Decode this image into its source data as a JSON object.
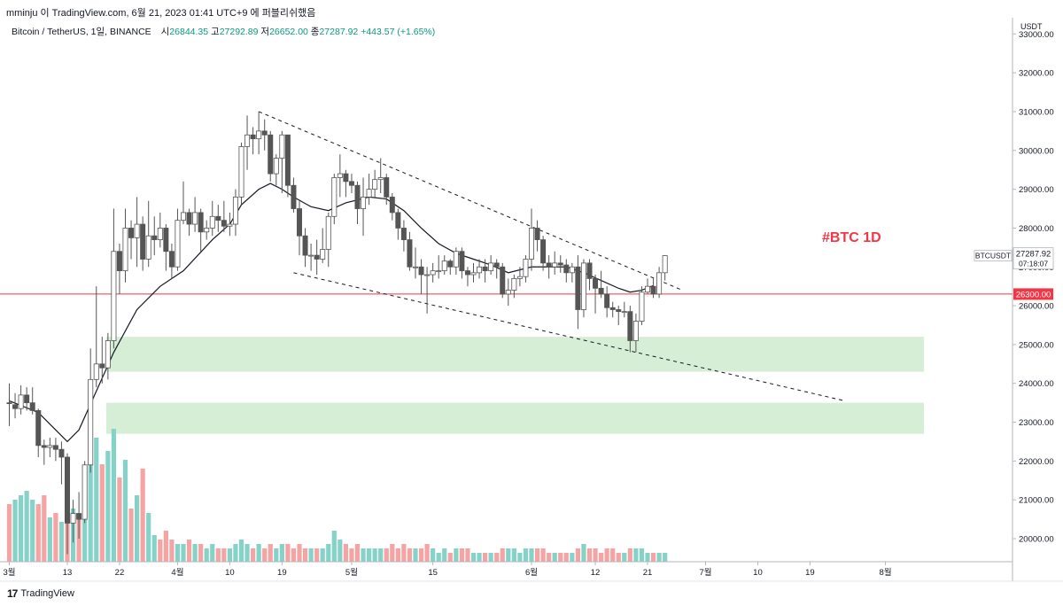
{
  "header": {
    "attribution": "mminju 이 TradingView.com, 6월 21, 2023 01:41 UTC+9 에 퍼블리쉬했음",
    "symbol": "Bitcoin / TetherUS, 1일, BINANCE",
    "ohlc": {
      "open_label": "시",
      "open": "26844.35",
      "high_label": "고",
      "high": "27292.89",
      "low_label": "저",
      "low": "26652.00",
      "close_label": "종",
      "close": "27287.92",
      "change": "+443.57 (+1.65%)"
    }
  },
  "chart_data": {
    "type": "candlestick",
    "title": "#BTC 1D",
    "currency": "USDT",
    "y_ticks": [
      20000,
      21000,
      22000,
      23000,
      24000,
      25000,
      26000,
      27000,
      28000,
      29000,
      30000,
      31000,
      32000,
      33000
    ],
    "y_tick_labels": [
      "20000.00",
      "21000.00",
      "22000.00",
      "23000.00",
      "24000.00",
      "25000.00",
      "26000.00",
      "27000.00",
      "28000.00",
      "29000.00",
      "30000.00",
      "31000.00",
      "32000.00",
      "33000.00"
    ],
    "x_ticks": [
      {
        "label": "3월",
        "d": 0
      },
      {
        "label": "13",
        "d": 10
      },
      {
        "label": "22",
        "d": 19
      },
      {
        "label": "4월",
        "d": 29
      },
      {
        "label": "10",
        "d": 38
      },
      {
        "label": "19",
        "d": 47
      },
      {
        "label": "5월",
        "d": 59
      },
      {
        "label": "15",
        "d": 73
      },
      {
        "label": "6월",
        "d": 90
      },
      {
        "label": "12",
        "d": 101
      },
      {
        "label": "21",
        "d": 110
      },
      {
        "label": "7월",
        "d": 120
      },
      {
        "label": "10",
        "d": 129
      },
      {
        "label": "19",
        "d": 138
      },
      {
        "label": "8월",
        "d": 151
      }
    ],
    "current_price": {
      "symbol": "BTCUSDT",
      "value": "27287.92",
      "countdown": "07:18:07"
    },
    "horizontal_line": {
      "value": 26300,
      "label": "26300.00",
      "color": "#f23645"
    },
    "support_zones": [
      {
        "low": 24300,
        "high": 25200,
        "color": "#d6eed6"
      },
      {
        "low": 22700,
        "high": 23500,
        "color": "#d6eed6"
      }
    ],
    "channel_lines": [
      {
        "from": {
          "d": 43,
          "p": 31000
        },
        "to": {
          "d": 116,
          "p": 26400
        }
      },
      {
        "from": {
          "d": 49,
          "p": 26850
        },
        "to": {
          "d": 144,
          "p": 23550
        }
      }
    ],
    "candles_open": 23640,
    "candles": [
      [
        23500,
        23480,
        24000,
        22900
      ],
      [
        23450,
        23350,
        23750,
        23100
      ],
      [
        23350,
        23700,
        23950,
        23200
      ],
      [
        23700,
        23500,
        23900,
        23300
      ],
      [
        23500,
        23300,
        23900,
        23200
      ],
      [
        23300,
        22400,
        23350,
        22100
      ],
      [
        22400,
        22350,
        22550,
        21900
      ],
      [
        22350,
        22400,
        22600,
        22100
      ],
      [
        22400,
        22300,
        22600,
        22000
      ],
      [
        22300,
        22100,
        22500,
        21400
      ],
      [
        22100,
        20400,
        22200,
        19600
      ],
      [
        20400,
        20650,
        21000,
        19900
      ],
      [
        20650,
        20500,
        21200,
        20000
      ],
      [
        20500,
        21900,
        22000,
        20400
      ],
      [
        21900,
        24100,
        24900,
        21700
      ],
      [
        24100,
        24500,
        26500,
        23900
      ],
      [
        24500,
        24400,
        25200,
        24000
      ],
      [
        24400,
        25100,
        25300,
        24100
      ],
      [
        25100,
        27400,
        28500,
        24900
      ],
      [
        27400,
        26900,
        27600,
        26300
      ],
      [
        26900,
        28000,
        28500,
        26600
      ],
      [
        28000,
        27750,
        28200,
        27200
      ],
      [
        27750,
        28100,
        28800,
        27000
      ],
      [
        28100,
        27200,
        28300,
        26900
      ],
      [
        27200,
        27800,
        28700,
        27000
      ],
      [
        27800,
        27700,
        28300,
        27300
      ],
      [
        27700,
        28000,
        28400,
        27500
      ],
      [
        28000,
        27400,
        28100,
        26900
      ],
      [
        27400,
        27000,
        27600,
        26700
      ],
      [
        27000,
        28200,
        28500,
        26900
      ],
      [
        28200,
        28400,
        29200,
        28100
      ],
      [
        28400,
        28100,
        28500,
        27800
      ],
      [
        28100,
        28400,
        28800,
        27900
      ],
      [
        28400,
        27900,
        28500,
        27400
      ],
      [
        27900,
        28000,
        28200,
        27700
      ],
      [
        28000,
        28300,
        28700,
        27800
      ],
      [
        28300,
        28200,
        28600,
        27900
      ],
      [
        28200,
        28050,
        28700,
        27900
      ],
      [
        28050,
        28100,
        28400,
        27800
      ],
      [
        28100,
        28800,
        29000,
        27800
      ],
      [
        28800,
        30100,
        30200,
        28600
      ],
      [
        30100,
        30400,
        30900,
        29500
      ],
      [
        30400,
        30300,
        30600,
        29900
      ],
      [
        30300,
        30500,
        31000,
        29900
      ],
      [
        30500,
        30400,
        30800,
        30000
      ],
      [
        30400,
        29400,
        30500,
        29200
      ],
      [
        29400,
        29800,
        29900,
        29100
      ],
      [
        29800,
        30400,
        30500,
        28900
      ],
      [
        30400,
        29100,
        30400,
        28800
      ],
      [
        29100,
        28500,
        29300,
        28400
      ],
      [
        28500,
        27800,
        28700,
        27300
      ],
      [
        27800,
        27300,
        28000,
        27000
      ],
      [
        27300,
        27300,
        27600,
        26900
      ],
      [
        27300,
        27200,
        27700,
        26800
      ],
      [
        27200,
        27450,
        28000,
        27100
      ],
      [
        27450,
        28300,
        28400,
        27000
      ],
      [
        28300,
        29300,
        29400,
        28100
      ],
      [
        29300,
        29400,
        29900,
        28800
      ],
      [
        29400,
        29200,
        29500,
        28800
      ],
      [
        29200,
        29100,
        29400,
        28900
      ],
      [
        29100,
        28500,
        29200,
        28100
      ],
      [
        28500,
        28800,
        29300,
        27800
      ],
      [
        28800,
        29000,
        29400,
        28600
      ],
      [
        29000,
        29250,
        29500,
        28800
      ],
      [
        29250,
        29300,
        29800,
        28900
      ],
      [
        29300,
        28800,
        29400,
        28600
      ],
      [
        28800,
        28400,
        28900,
        28200
      ],
      [
        28400,
        28000,
        28500,
        27700
      ],
      [
        28000,
        27700,
        28200,
        27400
      ],
      [
        27700,
        27000,
        27900,
        26900
      ],
      [
        27000,
        27000,
        27500,
        26700
      ],
      [
        27000,
        26800,
        27200,
        26300
      ],
      [
        26800,
        26800,
        27000,
        25800
      ],
      [
        26800,
        26900,
        27100,
        26600
      ],
      [
        26900,
        26900,
        27300,
        26700
      ],
      [
        26900,
        27150,
        27300,
        26800
      ],
      [
        27150,
        27000,
        27200,
        26800
      ],
      [
        27000,
        27400,
        27500,
        26800
      ],
      [
        27400,
        26900,
        27500,
        26700
      ],
      [
        26900,
        26800,
        27000,
        26500
      ],
      [
        26800,
        26850,
        27100,
        26600
      ],
      [
        26850,
        27000,
        27200,
        26700
      ],
      [
        27000,
        26900,
        27200,
        26600
      ],
      [
        26900,
        27100,
        27300,
        26800
      ],
      [
        27100,
        27000,
        27200,
        26700
      ],
      [
        27000,
        26300,
        27100,
        26200
      ],
      [
        26300,
        26400,
        26700,
        26000
      ],
      [
        26400,
        26700,
        26800,
        26200
      ],
      [
        26700,
        26750,
        27000,
        26500
      ],
      [
        26750,
        27200,
        27300,
        26600
      ],
      [
        27200,
        28000,
        28500,
        26900
      ],
      [
        28000,
        27700,
        28200,
        27400
      ],
      [
        27700,
        27100,
        27800,
        26900
      ],
      [
        27100,
        27000,
        27300,
        26700
      ],
      [
        27000,
        27100,
        27400,
        26800
      ],
      [
        27100,
        27050,
        27300,
        26850
      ],
      [
        27050,
        26850,
        27200,
        26600
      ],
      [
        26850,
        27000,
        27100,
        26600
      ],
      [
        27000,
        25900,
        27300,
        25400
      ],
      [
        25900,
        27100,
        27200,
        25700
      ],
      [
        27100,
        26700,
        27200,
        26400
      ],
      [
        26700,
        26450,
        26800,
        25800
      ],
      [
        26450,
        26300,
        26900,
        26200
      ],
      [
        26300,
        25950,
        26500,
        25700
      ],
      [
        25950,
        25900,
        26100,
        25700
      ],
      [
        25900,
        25850,
        26000,
        25500
      ],
      [
        25850,
        25850,
        26100,
        25700
      ],
      [
        25850,
        25100,
        26000,
        24800
      ],
      [
        25100,
        25600,
        25800,
        24800
      ],
      [
        25600,
        26350,
        26500,
        25500
      ],
      [
        26350,
        26500,
        26700,
        26300
      ],
      [
        26500,
        26300,
        26700,
        26200
      ],
      [
        26300,
        26850,
        27000,
        26200
      ],
      [
        26850,
        27290,
        27300,
        26650
      ]
    ],
    "moving_average": [
      [
        0,
        23550
      ],
      [
        5,
        23250
      ],
      [
        8,
        22800
      ],
      [
        10,
        22500
      ],
      [
        12,
        22800
      ],
      [
        15,
        23800
      ],
      [
        18,
        24800
      ],
      [
        22,
        25900
      ],
      [
        26,
        26500
      ],
      [
        30,
        26900
      ],
      [
        35,
        27700
      ],
      [
        38,
        28100
      ],
      [
        40,
        28600
      ],
      [
        43,
        29000
      ],
      [
        45,
        29150
      ],
      [
        47,
        29000
      ],
      [
        49,
        28800
      ],
      [
        52,
        28550
      ],
      [
        55,
        28450
      ],
      [
        58,
        28650
      ],
      [
        62,
        28800
      ],
      [
        65,
        28750
      ],
      [
        68,
        28450
      ],
      [
        71,
        28000
      ],
      [
        74,
        27600
      ],
      [
        77,
        27350
      ],
      [
        80,
        27200
      ],
      [
        83,
        27050
      ],
      [
        86,
        26850
      ],
      [
        90,
        27000
      ],
      [
        93,
        27000
      ],
      [
        96,
        27000
      ],
      [
        99,
        26850
      ],
      [
        102,
        26650
      ],
      [
        105,
        26450
      ],
      [
        107,
        26350
      ],
      [
        109,
        26400
      ],
      [
        111,
        26520
      ]
    ],
    "volumes": [
      [
        0,
        1.3
      ],
      [
        1,
        1.4
      ],
      [
        1,
        1.5
      ],
      [
        1,
        1.6
      ],
      [
        1,
        1.4
      ],
      [
        0,
        1.3
      ],
      [
        0,
        1.5
      ],
      [
        1,
        1.0
      ],
      [
        0,
        1.1
      ],
      [
        1,
        0.9
      ],
      [
        0,
        1.6
      ],
      [
        1,
        1.2
      ],
      [
        0,
        1.0
      ],
      [
        1,
        1.5
      ],
      [
        1,
        2.5
      ],
      [
        1,
        2.8
      ],
      [
        0,
        2.2
      ],
      [
        1,
        2.5
      ],
      [
        1,
        3.0
      ],
      [
        0,
        1.9
      ],
      [
        1,
        2.3
      ],
      [
        0,
        1.2
      ],
      [
        1,
        1.5
      ],
      [
        0,
        2.1
      ],
      [
        1,
        1.1
      ],
      [
        1,
        0.6
      ],
      [
        0,
        0.5
      ],
      [
        0,
        0.7
      ],
      [
        0,
        0.5
      ],
      [
        1,
        0.4
      ],
      [
        1,
        0.4
      ],
      [
        0,
        0.5
      ],
      [
        1,
        0.4
      ],
      [
        0,
        0.4
      ],
      [
        1,
        0.3
      ],
      [
        1,
        0.4
      ],
      [
        0,
        0.3
      ],
      [
        0,
        0.3
      ],
      [
        1,
        0.3
      ],
      [
        1,
        0.4
      ],
      [
        1,
        0.5
      ],
      [
        1,
        0.4
      ],
      [
        0,
        0.3
      ],
      [
        1,
        0.4
      ],
      [
        0,
        0.3
      ],
      [
        0,
        0.4
      ],
      [
        1,
        0.3
      ],
      [
        1,
        0.4
      ],
      [
        0,
        0.4
      ],
      [
        0,
        0.3
      ],
      [
        0,
        0.4
      ],
      [
        0,
        0.3
      ],
      [
        1,
        0.3
      ],
      [
        0,
        0.3
      ],
      [
        1,
        0.3
      ],
      [
        1,
        0.4
      ],
      [
        1,
        0.7
      ],
      [
        1,
        0.5
      ],
      [
        0,
        0.4
      ],
      [
        0,
        0.3
      ],
      [
        0,
        0.4
      ],
      [
        1,
        0.3
      ],
      [
        1,
        0.3
      ],
      [
        1,
        0.3
      ],
      [
        1,
        0.3
      ],
      [
        0,
        0.3
      ],
      [
        0,
        0.4
      ],
      [
        0,
        0.3
      ],
      [
        0,
        0.4
      ],
      [
        0,
        0.3
      ],
      [
        1,
        0.3
      ],
      [
        0,
        0.3
      ],
      [
        0,
        0.4
      ],
      [
        1,
        0.3
      ],
      [
        1,
        0.2
      ],
      [
        1,
        0.3
      ],
      [
        0,
        0.2
      ],
      [
        1,
        0.3
      ],
      [
        0,
        0.3
      ],
      [
        0,
        0.3
      ],
      [
        1,
        0.2
      ],
      [
        1,
        0.2
      ],
      [
        0,
        0.2
      ],
      [
        1,
        0.2
      ],
      [
        0,
        0.2
      ],
      [
        0,
        0.3
      ],
      [
        1,
        0.3
      ],
      [
        1,
        0.3
      ],
      [
        1,
        0.2
      ],
      [
        1,
        0.3
      ],
      [
        1,
        0.3
      ],
      [
        0,
        0.3
      ],
      [
        0,
        0.3
      ],
      [
        0,
        0.2
      ],
      [
        1,
        0.2
      ],
      [
        0,
        0.2
      ],
      [
        0,
        0.2
      ],
      [
        1,
        0.2
      ],
      [
        0,
        0.3
      ],
      [
        1,
        0.4
      ],
      [
        0,
        0.3
      ],
      [
        0,
        0.3
      ],
      [
        0,
        0.2
      ],
      [
        0,
        0.3
      ],
      [
        0,
        0.3
      ],
      [
        0,
        0.2
      ],
      [
        1,
        0.2
      ],
      [
        0,
        0.3
      ],
      [
        1,
        0.3
      ],
      [
        1,
        0.3
      ],
      [
        1,
        0.2
      ],
      [
        0,
        0.2
      ],
      [
        1,
        0.2
      ],
      [
        1,
        0.2
      ]
    ]
  },
  "footer": {
    "brand": "TradingView"
  }
}
